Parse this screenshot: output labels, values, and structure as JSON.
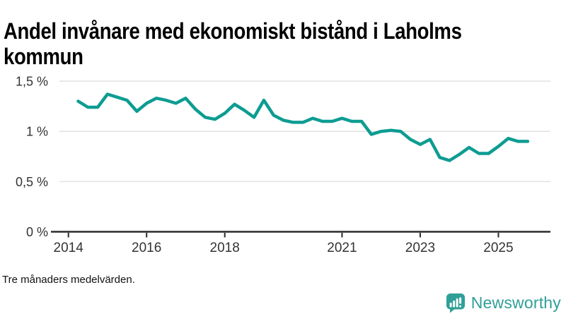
{
  "title": "Andel invånare med ekonomiskt bistånd i Laholms kommun",
  "title_lines": [
    "Andel invånare med ekonomiskt bistånd i Laholms",
    "kommun"
  ],
  "footnote": "Tre månaders medelvärden.",
  "branding": {
    "name": "Newsworthy",
    "icon": "bar-chart-speech-bubble-icon",
    "color": "#2f9f97"
  },
  "colors": {
    "line": "#0d9c92",
    "grid": "#e2e2e2",
    "axis": "#2b2b2b",
    "tick_label": "#333333"
  },
  "chart_data": {
    "type": "line",
    "title": "Andel invånare med ekonomiskt bistånd i Laholms kommun",
    "subtitle_note": "Tre månaders medelvärden.",
    "unit": "%",
    "grid": "horizontal",
    "legend_position": "none",
    "ylim": [
      0,
      1.5
    ],
    "xlim": [
      2013.55,
      2026.35
    ],
    "x_ticks": [
      {
        "v": 2014,
        "label": "2014"
      },
      {
        "v": 2016,
        "label": "2016"
      },
      {
        "v": 2018,
        "label": "2018"
      },
      {
        "v": 2021,
        "label": "2021"
      },
      {
        "v": 2023,
        "label": "2023"
      },
      {
        "v": 2025,
        "label": "2025"
      }
    ],
    "y_ticks": [
      {
        "v": 0,
        "label": "0 %"
      },
      {
        "v": 0.5,
        "label": "0,5 %"
      },
      {
        "v": 1.0,
        "label": "1 %"
      },
      {
        "v": 1.5,
        "label": "1,5 %"
      }
    ],
    "series": [
      {
        "name": "Andel invånare med ekonomiskt bistånd",
        "x": [
          2014.25,
          2014.5,
          2014.75,
          2015,
          2015.25,
          2015.5,
          2015.75,
          2016,
          2016.25,
          2016.5,
          2016.75,
          2017,
          2017.25,
          2017.5,
          2017.75,
          2018,
          2018.25,
          2018.5,
          2018.75,
          2019,
          2019.25,
          2019.5,
          2019.75,
          2020,
          2020.25,
          2020.5,
          2020.75,
          2021,
          2021.25,
          2021.5,
          2021.75,
          2022,
          2022.25,
          2022.5,
          2022.75,
          2023,
          2023.25,
          2023.5,
          2023.75,
          2024,
          2024.25,
          2024.5,
          2024.75,
          2025,
          2025.25,
          2025.5,
          2025.75
        ],
        "values": [
          1.3,
          1.24,
          1.24,
          1.37,
          1.34,
          1.31,
          1.2,
          1.28,
          1.33,
          1.31,
          1.28,
          1.33,
          1.22,
          1.14,
          1.12,
          1.18,
          1.27,
          1.21,
          1.14,
          1.31,
          1.16,
          1.11,
          1.09,
          1.09,
          1.13,
          1.1,
          1.1,
          1.13,
          1.1,
          1.1,
          0.97,
          1.0,
          1.01,
          1.0,
          0.92,
          0.87,
          0.92,
          0.74,
          0.71,
          0.77,
          0.84,
          0.78,
          0.78,
          0.85,
          0.93,
          0.9,
          0.9
        ]
      }
    ]
  }
}
